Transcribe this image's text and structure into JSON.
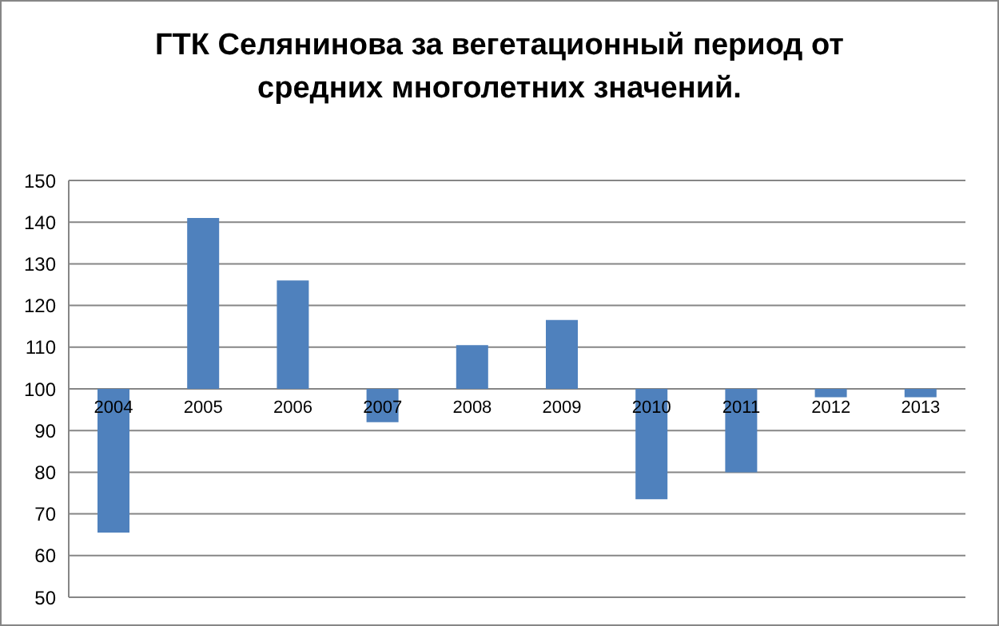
{
  "chart_data": {
    "type": "bar",
    "title": "ГТК Селянинова за вегетационный период от средних многолетних значений.",
    "categories": [
      "2004",
      "2005",
      "2006",
      "2007",
      "2008",
      "2009",
      "2010",
      "2011",
      "2012",
      "2013"
    ],
    "base": [
      100,
      100,
      100,
      100,
      100,
      100,
      100,
      100,
      100,
      100
    ],
    "values": [
      -34.5,
      41,
      26,
      -8,
      10.5,
      16.5,
      -26.5,
      -20,
      -2,
      -2
    ],
    "color": "#4f81bd",
    "ylim": [
      50,
      150
    ],
    "yticks": [
      50,
      60,
      70,
      80,
      90,
      100,
      110,
      120,
      130,
      140,
      150
    ],
    "grid": "y"
  }
}
